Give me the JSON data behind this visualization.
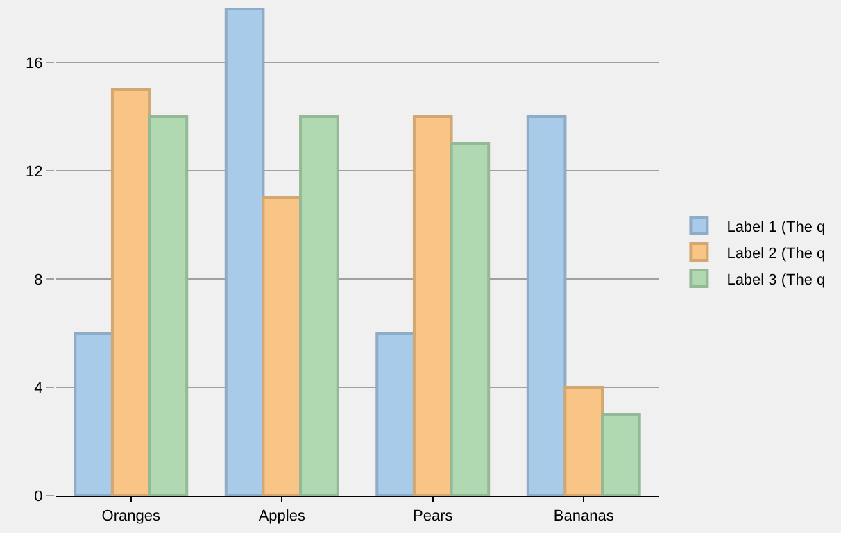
{
  "chart_data": {
    "type": "bar",
    "categories": [
      "Oranges",
      "Apples",
      "Pears",
      "Bananas"
    ],
    "series": [
      {
        "name": "Label 1 (The q",
        "color": "#a8cbe9",
        "values": [
          6,
          18,
          6,
          14
        ]
      },
      {
        "name": "Label 2 (The q",
        "color": "#f9c587",
        "values": [
          15,
          11,
          14,
          4
        ]
      },
      {
        "name": "Label 3 (The q",
        "color": "#b0d9b1",
        "values": [
          14,
          14,
          13,
          3
        ]
      }
    ],
    "ylim": [
      0,
      18
    ],
    "yticks": [
      0,
      4,
      8,
      12,
      16
    ],
    "grid": "y",
    "legend": "right"
  }
}
